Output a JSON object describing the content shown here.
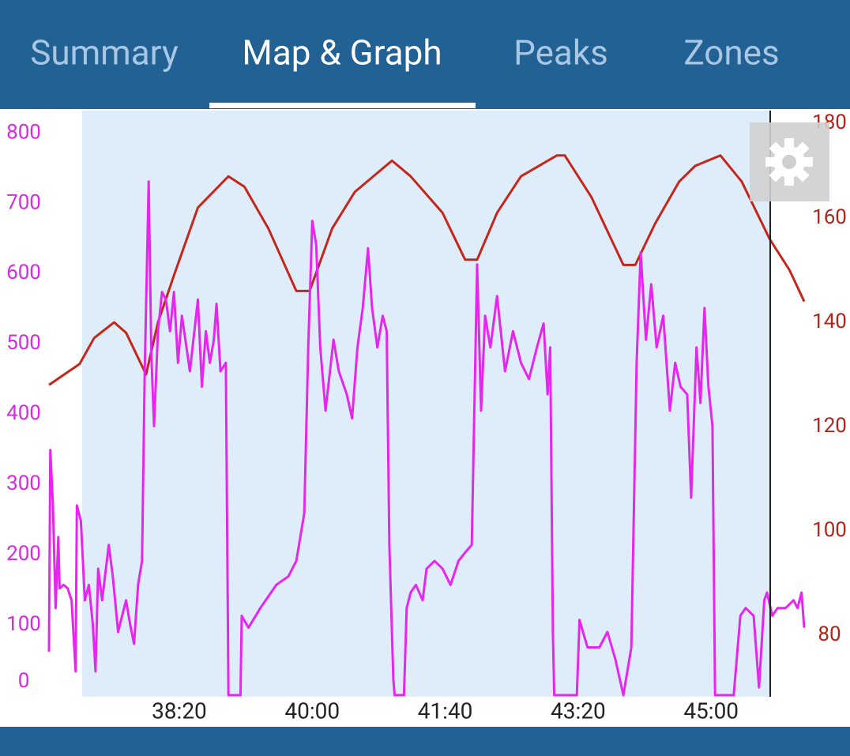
{
  "tabs": [
    "Summary",
    "Map & Graph",
    "Peaks",
    "Zones"
  ],
  "chart_data": {
    "type": "line",
    "xlim": [
      2202,
      2770
    ],
    "xticks": [
      {
        "value": 2300,
        "label": "38:20"
      },
      {
        "value": 2400,
        "label": "40:00"
      },
      {
        "value": 2500,
        "label": "41:40"
      },
      {
        "value": 2600,
        "label": "43:20"
      },
      {
        "value": 2700,
        "label": "45:00"
      }
    ],
    "ylim": [
      0,
      832
    ],
    "yticks": [
      0,
      100,
      200,
      300,
      400,
      500,
      600,
      700,
      800
    ],
    "y2lim": [
      68.5,
      180.6
    ],
    "y2ticks": [
      80,
      100,
      120,
      140,
      160,
      180
    ],
    "series": [
      {
        "color": "#c4261b",
        "axis": "y2",
        "x": [
          2202,
          2225,
          2236,
          2251,
          2260,
          2275,
          2284,
          2296,
          2314,
          2337,
          2349,
          2367,
          2388,
          2398,
          2415,
          2432,
          2460,
          2474,
          2498,
          2515,
          2524,
          2539,
          2557,
          2584,
          2590,
          2610,
          2634,
          2643,
          2658,
          2676,
          2688,
          2707,
          2723,
          2744,
          2759,
          2770
        ],
        "values": [
          128,
          132,
          137,
          140,
          138,
          130,
          140,
          149,
          162,
          168,
          166,
          158,
          146,
          146,
          158,
          165,
          171,
          168,
          161,
          152,
          152,
          161,
          168,
          172,
          172,
          164,
          151,
          151,
          159,
          167,
          170,
          172,
          167,
          156,
          150,
          144
        ]
      },
      {
        "color": "#e626ee",
        "x": [
          2202,
          2203,
          2205,
          2207,
          2209,
          2210,
          2213,
          2216,
          2219,
          2222,
          2223,
          2226,
          2229,
          2232,
          2235,
          2237,
          2239,
          2242,
          2247,
          2250,
          2254,
          2257,
          2260,
          2263,
          2266,
          2269,
          2272,
          2274,
          2277,
          2279,
          2281,
          2284,
          2287,
          2290,
          2293,
          2296,
          2299,
          2302,
          2308,
          2314,
          2317,
          2320,
          2323,
          2326,
          2328,
          2331,
          2335,
          2337,
          2346,
          2347,
          2352,
          2361,
          2373,
          2382,
          2388,
          2394,
          2397,
          2400,
          2403,
          2406,
          2410,
          2416,
          2420,
          2426,
          2430,
          2434,
          2438,
          2442,
          2445,
          2449,
          2453,
          2456,
          2458,
          2461,
          2462,
          2469,
          2471,
          2474,
          2478,
          2483,
          2486,
          2492,
          2498,
          2504,
          2510,
          2515,
          2520,
          2524,
          2527,
          2530,
          2534,
          2539,
          2545,
          2551,
          2557,
          2563,
          2569,
          2574,
          2577,
          2579,
          2581,
          2582,
          2599,
          2601,
          2607,
          2616,
          2622,
          2628,
          2634,
          2640,
          2644,
          2647,
          2651,
          2655,
          2659,
          2664,
          2669,
          2673,
          2677,
          2682,
          2685,
          2689,
          2692,
          2695,
          2698,
          2701,
          2703,
          2717,
          2722,
          2726,
          2732,
          2736,
          2740,
          2742,
          2746,
          2750,
          2756,
          2762,
          2765,
          2768,
          2770
        ],
        "values": [
          62,
          349,
          270,
          124,
          225,
          152,
          157,
          152,
          135,
          34,
          270,
          248,
          135,
          157,
          101,
          34,
          180,
          135,
          214,
          169,
          90,
          113,
          135,
          101,
          73,
          157,
          191,
          461,
          731,
          484,
          383,
          518,
          574,
          563,
          518,
          574,
          473,
          540,
          461,
          563,
          439,
          518,
          473,
          506,
          557,
          461,
          473,
          0,
          0,
          113,
          96,
          124,
          157,
          169,
          191,
          259,
          495,
          675,
          641,
          495,
          405,
          506,
          461,
          428,
          394,
          495,
          551,
          636,
          551,
          495,
          540,
          518,
          214,
          23,
          0,
          0,
          124,
          146,
          157,
          135,
          180,
          191,
          180,
          157,
          191,
          203,
          214,
          613,
          405,
          540,
          495,
          568,
          461,
          518,
          473,
          450,
          495,
          529,
          428,
          495,
          90,
          0,
          0,
          107,
          68,
          68,
          90,
          51,
          0,
          68,
          473,
          630,
          506,
          585,
          495,
          540,
          405,
          473,
          439,
          428,
          281,
          495,
          416,
          551,
          439,
          383,
          0,
          0,
          113,
          124,
          113,
          11,
          135,
          146,
          113,
          124,
          124,
          135,
          124,
          146,
          96
        ]
      }
    ]
  }
}
